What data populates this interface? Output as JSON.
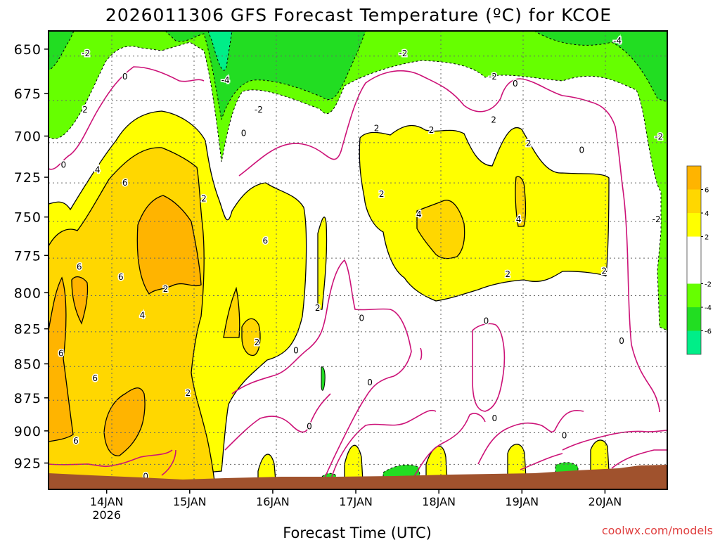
{
  "chart_data": {
    "type": "heatmap",
    "title": "2026011306 GFS Forecast Temperature (ºC) for KCOE",
    "xlabel": "Forecast Time (UTC)",
    "ylabel": "",
    "credit": "coolwx.com/models",
    "x_ticks": [
      {
        "label": "14JAN",
        "sublabel": "2026",
        "day": 14
      },
      {
        "label": "15JAN",
        "day": 15
      },
      {
        "label": "16JAN",
        "day": 16
      },
      {
        "label": "17JAN",
        "day": 17
      },
      {
        "label": "18JAN",
        "day": 18
      },
      {
        "label": "19JAN",
        "day": 19
      },
      {
        "label": "20JAN",
        "day": 20
      }
    ],
    "xlim": [
      13.3,
      20.75
    ],
    "y_ticks": [
      650,
      675,
      700,
      725,
      750,
      775,
      800,
      825,
      850,
      875,
      900,
      925
    ],
    "ylim": [
      640,
      946
    ],
    "colorbar": {
      "levels": [
        -8,
        -6,
        -4,
        -2,
        2,
        4,
        6,
        8
      ],
      "labels": [
        {
          "text": "6",
          "value": 6
        },
        {
          "text": "4",
          "value": 4
        },
        {
          "text": "2",
          "value": 2
        },
        {
          "text": "-2",
          "value": -2
        },
        {
          "text": "-4",
          "value": -4
        },
        {
          "text": "-6",
          "value": -6
        }
      ],
      "colors": [
        "#00ee88",
        "#22dd22",
        "#66ff00",
        "#ffffff",
        "#ffff00",
        "#ffd700",
        "#ffb400"
      ]
    },
    "colors": {
      "green_dark": "#22dd22",
      "green_light": "#66ff00",
      "green_top": "#00ee88",
      "yellow": "#ffff00",
      "gold": "#ffd700",
      "orange": "#ffb400",
      "zero_contour": "#cc1177",
      "ground": "#a0522d",
      "grid": "#666666"
    },
    "contour_labels": [
      {
        "text": "-2",
        "day": 13.75,
        "p": 652
      },
      {
        "text": "-4",
        "day": 15.43,
        "p": 667
      },
      {
        "text": "-2",
        "day": 15.83,
        "p": 684
      },
      {
        "text": "-2",
        "day": 17.57,
        "p": 652
      },
      {
        "text": "-2",
        "day": 18.65,
        "p": 665
      },
      {
        "text": "-4",
        "day": 20.15,
        "p": 645
      },
      {
        "text": "-2",
        "day": 20.65,
        "p": 700
      },
      {
        "text": "-2",
        "day": 20.62,
        "p": 751
      },
      {
        "text": "0",
        "day": 14.22,
        "p": 665
      },
      {
        "text": "0",
        "day": 13.48,
        "p": 717
      },
      {
        "text": "0",
        "day": 15.65,
        "p": 698
      },
      {
        "text": "0",
        "day": 18.92,
        "p": 669
      },
      {
        "text": "0",
        "day": 19.72,
        "p": 708
      },
      {
        "text": "0",
        "day": 20.2,
        "p": 833
      },
      {
        "text": "0",
        "day": 16.28,
        "p": 840
      },
      {
        "text": "0",
        "day": 17.07,
        "p": 817
      },
      {
        "text": "0",
        "day": 17.17,
        "p": 863
      },
      {
        "text": "0",
        "day": 16.44,
        "p": 896
      },
      {
        "text": "0",
        "day": 18.57,
        "p": 819
      },
      {
        "text": "0",
        "day": 18.67,
        "p": 890
      },
      {
        "text": "0",
        "day": 19.51,
        "p": 903
      },
      {
        "text": "0",
        "day": 14.47,
        "p": 935
      },
      {
        "text": "2",
        "day": 13.74,
        "p": 684
      },
      {
        "text": "2",
        "day": 17.25,
        "p": 695
      },
      {
        "text": "2",
        "day": 17.91,
        "p": 696
      },
      {
        "text": "2",
        "day": 18.66,
        "p": 690
      },
      {
        "text": "2",
        "day": 19.08,
        "p": 704
      },
      {
        "text": "2",
        "day": 15.17,
        "p": 738
      },
      {
        "text": "2",
        "day": 17.31,
        "p": 735
      },
      {
        "text": "2",
        "day": 14.71,
        "p": 797
      },
      {
        "text": "2",
        "day": 16.54,
        "p": 810
      },
      {
        "text": "2",
        "day": 15.81,
        "p": 834
      },
      {
        "text": "2",
        "day": 14.98,
        "p": 871
      },
      {
        "text": "2",
        "day": 18.83,
        "p": 787
      },
      {
        "text": "2",
        "day": 19.99,
        "p": 785
      },
      {
        "text": "4",
        "day": 13.89,
        "p": 720
      },
      {
        "text": "4",
        "day": 17.76,
        "p": 748
      },
      {
        "text": "4",
        "day": 18.96,
        "p": 751
      },
      {
        "text": "4",
        "day": 14.43,
        "p": 815
      },
      {
        "text": "6",
        "day": 14.22,
        "p": 728
      },
      {
        "text": "6",
        "day": 13.67,
        "p": 782
      },
      {
        "text": "6",
        "day": 14.17,
        "p": 789
      },
      {
        "text": "6",
        "day": 13.45,
        "p": 842
      },
      {
        "text": "6",
        "day": 13.86,
        "p": 860
      },
      {
        "text": "6",
        "day": 13.63,
        "p": 907
      },
      {
        "text": "6",
        "day": 15.91,
        "p": 765
      }
    ]
  }
}
